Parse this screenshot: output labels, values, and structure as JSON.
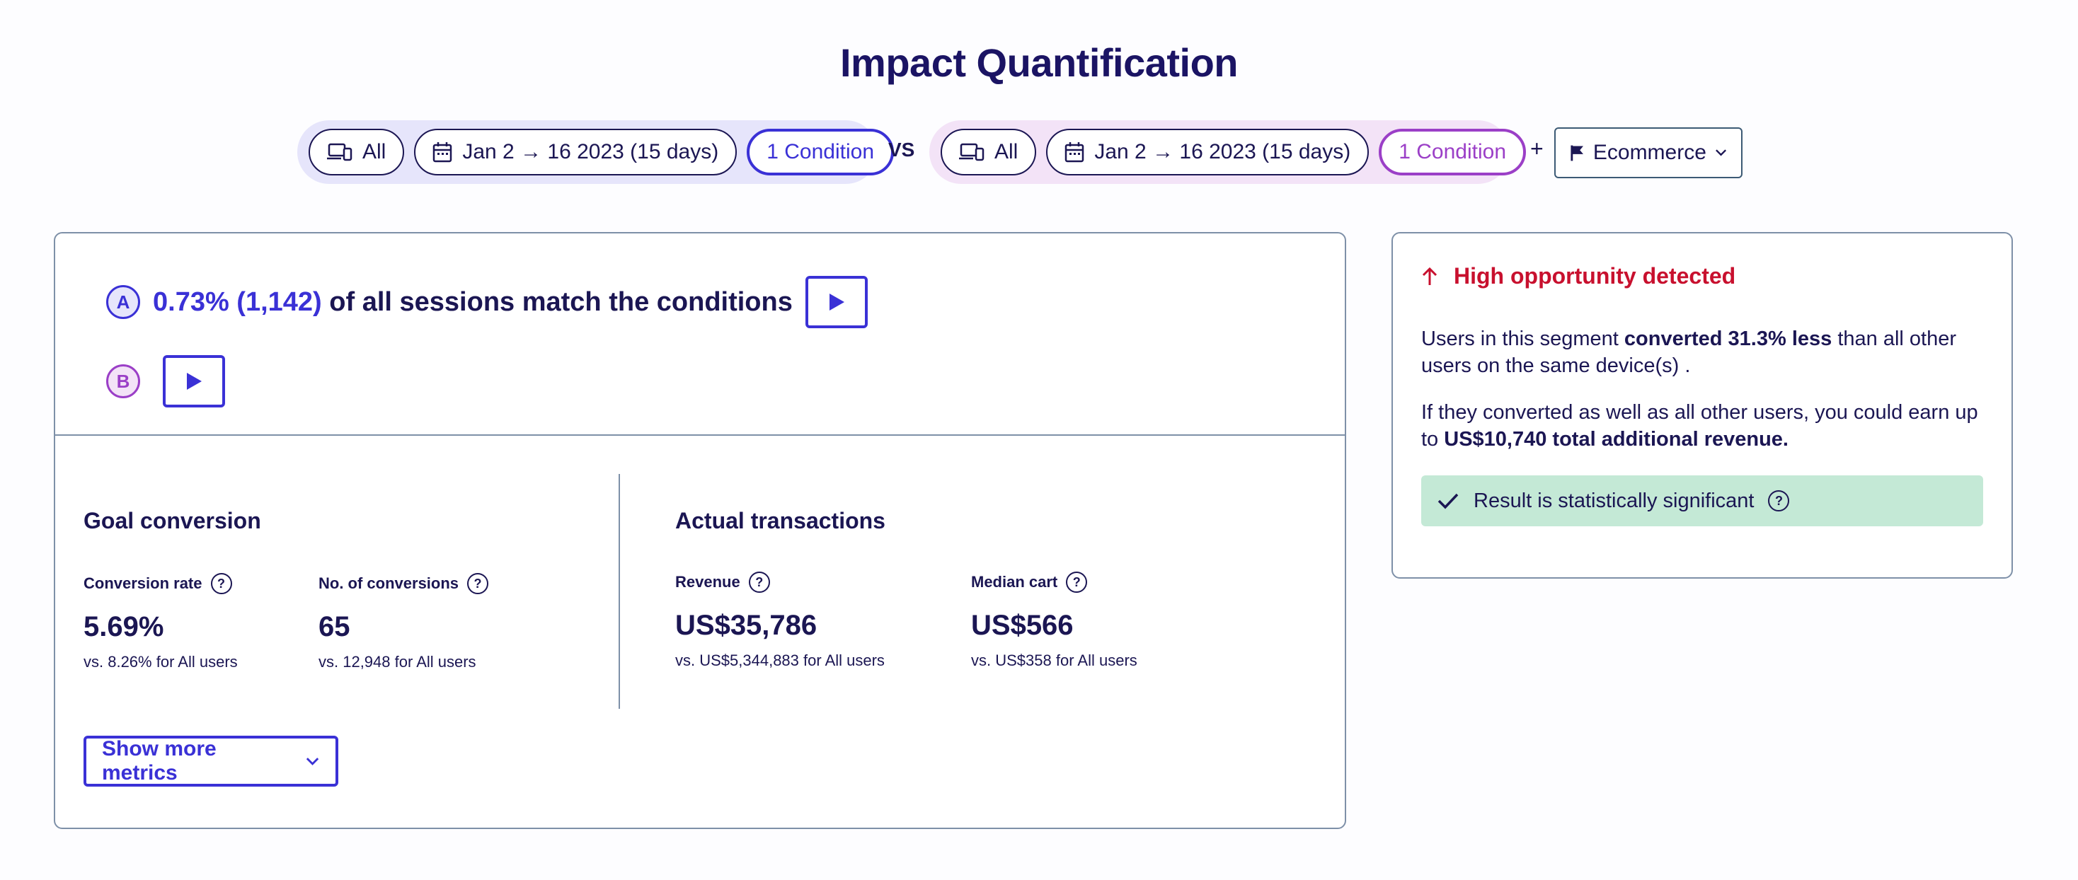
{
  "page": {
    "title": "Impact Quantification"
  },
  "segment_a": {
    "device": "All",
    "date": "Jan 2 → 16 2023 (15 days)",
    "condition": "1 Condition"
  },
  "vs_label": "VS",
  "segment_b": {
    "device": "All",
    "date": "Jan 2 → 16 2023 (15 days)",
    "condition": "1 Condition"
  },
  "plus_label": "+",
  "goal_selector": {
    "label": "Ecommerce"
  },
  "match": {
    "a_letter": "A",
    "b_letter": "B",
    "highlight": "0.73% (1,142)",
    "text": "of all sessions match the conditions"
  },
  "goal_conversion": {
    "title": "Goal conversion",
    "metrics": [
      {
        "label": "Conversion rate",
        "value": "5.69%",
        "comparison": "vs. 8.26% for All users"
      },
      {
        "label": "No. of conversions",
        "value": "65",
        "comparison": "vs. 12,948 for All users"
      }
    ]
  },
  "actual_transactions": {
    "title": "Actual transactions",
    "metrics": [
      {
        "label": "Revenue",
        "value": "US$35,786",
        "comparison": "vs. US$5,344,883 for All users"
      },
      {
        "label": "Median cart",
        "value": "US$566",
        "comparison": "vs. US$358 for All users"
      }
    ]
  },
  "show_more": {
    "label": "Show more metrics"
  },
  "opportunity": {
    "title": "High opportunity detected",
    "p1_before": "Users in this segment ",
    "p1_bold": "converted 31.3% less",
    "p1_after": " than all other users on the same device(s) .",
    "p2_before": "If they converted as well as all other users, you could earn up to ",
    "p2_bold": "US$10,740 total additional revenue.",
    "significance": "Result is statistically significant"
  },
  "colors": {
    "primary": "#3a31d6",
    "segment_b": "#9b3fc7",
    "text_dark": "#1b1653",
    "alert_red": "#c8102e",
    "success_bg": "#c4e9d6"
  }
}
